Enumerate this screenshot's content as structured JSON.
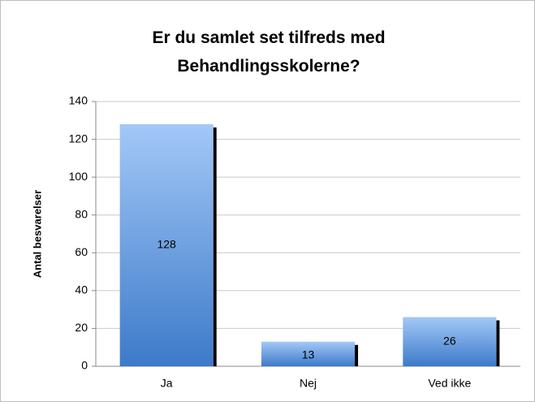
{
  "chart_data": {
    "type": "bar",
    "title": "Er du samlet set tilfreds med Behandlingsskolerne?",
    "y_label": "Antal besvarelser",
    "categories": [
      "Ja",
      "Nej",
      "Ved ikke"
    ],
    "values": [
      128,
      13,
      26
    ],
    "color": "#4a86d4",
    "ylim": [
      0,
      140
    ],
    "yticks": [
      0,
      20,
      40,
      60,
      80,
      100,
      120,
      140
    ],
    "grid": true
  }
}
